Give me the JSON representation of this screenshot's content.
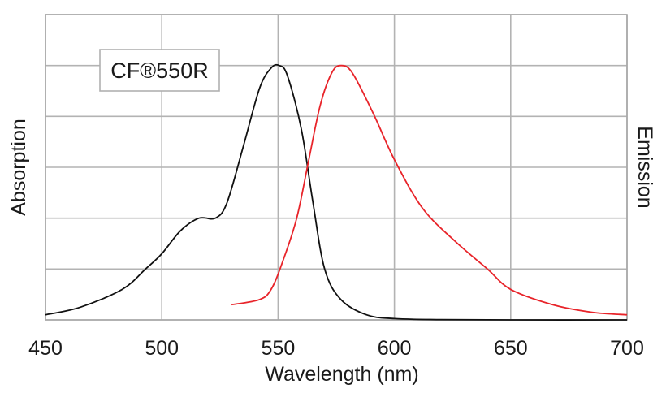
{
  "chart_data": {
    "type": "line",
    "title": "",
    "annotation": "CF®550R",
    "xlabel": "Wavelength (nm)",
    "ylabel_left": "Absorption",
    "ylabel_right": "Emission",
    "xlim": [
      450,
      700
    ],
    "ylim": [
      0,
      1.2
    ],
    "x_ticks": [
      450,
      500,
      550,
      600,
      650,
      700
    ],
    "x_tick_labels": [
      "450",
      "500",
      "550",
      "600",
      "650",
      "700"
    ],
    "y_gridlines": [
      0,
      0.2,
      0.4,
      0.6,
      0.8,
      1.0,
      1.2
    ],
    "grid": true,
    "series": [
      {
        "name": "Absorption",
        "color": "#111111",
        "x": [
          450,
          465,
          483,
          493,
          500,
          508,
          516,
          523,
          528,
          535,
          542,
          547,
          550.5,
          554,
          560,
          565,
          570,
          577,
          588,
          600,
          620,
          650,
          700
        ],
        "y": [
          0.02,
          0.05,
          0.12,
          0.2,
          0.26,
          0.35,
          0.4,
          0.4,
          0.46,
          0.68,
          0.91,
          0.99,
          1.0,
          0.96,
          0.75,
          0.46,
          0.2,
          0.08,
          0.02,
          0.005,
          0.001,
          0.0,
          0.0
        ]
      },
      {
        "name": "Emission",
        "color": "#e8242a",
        "x": [
          530,
          542,
          547,
          552,
          558,
          563,
          568,
          573,
          577,
          582,
          591,
          600,
          612,
          626,
          640,
          650,
          668,
          685,
          700
        ],
        "y": [
          0.06,
          0.08,
          0.12,
          0.23,
          0.4,
          0.62,
          0.84,
          0.97,
          1.0,
          0.97,
          0.81,
          0.63,
          0.44,
          0.31,
          0.2,
          0.12,
          0.06,
          0.03,
          0.02
        ]
      }
    ]
  }
}
